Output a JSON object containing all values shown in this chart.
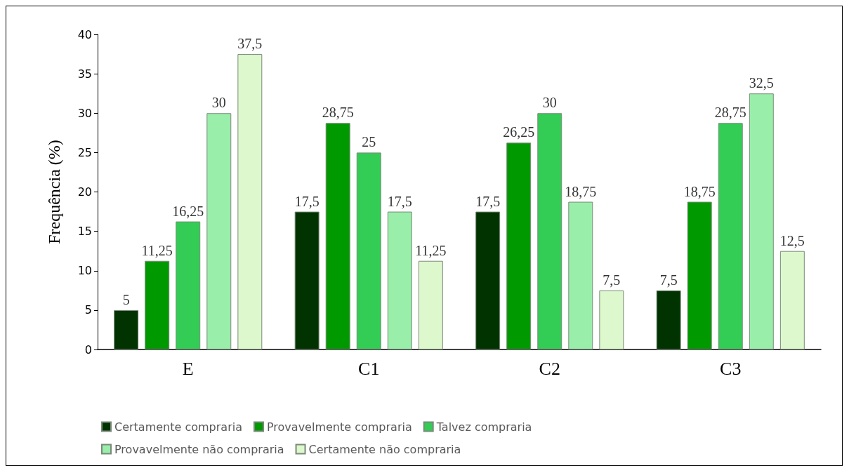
{
  "chart_data": {
    "type": "bar",
    "ylabel": "Frequência (%)",
    "categories": [
      "E",
      "C1",
      "C2",
      "C3"
    ],
    "ylim": [
      0,
      40
    ],
    "yticks": [
      0,
      5,
      10,
      15,
      20,
      25,
      30,
      35,
      40
    ],
    "grid": false,
    "legend": "bottom",
    "series": [
      {
        "name": "Certamente compraria",
        "color": "#003300",
        "values": [
          5,
          17.5,
          17.5,
          7.5
        ],
        "value_labels": [
          "5",
          "17,5",
          "17,5",
          "7,5"
        ]
      },
      {
        "name": "Provavelmente compraria",
        "color": "#009900",
        "values": [
          11.25,
          28.75,
          26.25,
          18.75
        ],
        "value_labels": [
          "11,25",
          "28,75",
          "26,25",
          "18,75"
        ]
      },
      {
        "name": "Talvez compraria",
        "color": "#33cc55",
        "values": [
          16.25,
          25,
          30,
          28.75
        ],
        "value_labels": [
          "16,25",
          "25",
          "30",
          "28,75"
        ]
      },
      {
        "name": "Provavelmente não compraria",
        "color": "#99eeaa",
        "values": [
          30,
          17.5,
          18.75,
          32.5
        ],
        "value_labels": [
          "30",
          "17,5",
          "18,75",
          "32,5"
        ]
      },
      {
        "name": "Certamente não compraria",
        "color": "#ddf8cc",
        "values": [
          37.5,
          11.25,
          7.5,
          12.5
        ],
        "value_labels": [
          "37,5",
          "11,25",
          "7,5",
          "12,5"
        ]
      }
    ]
  }
}
